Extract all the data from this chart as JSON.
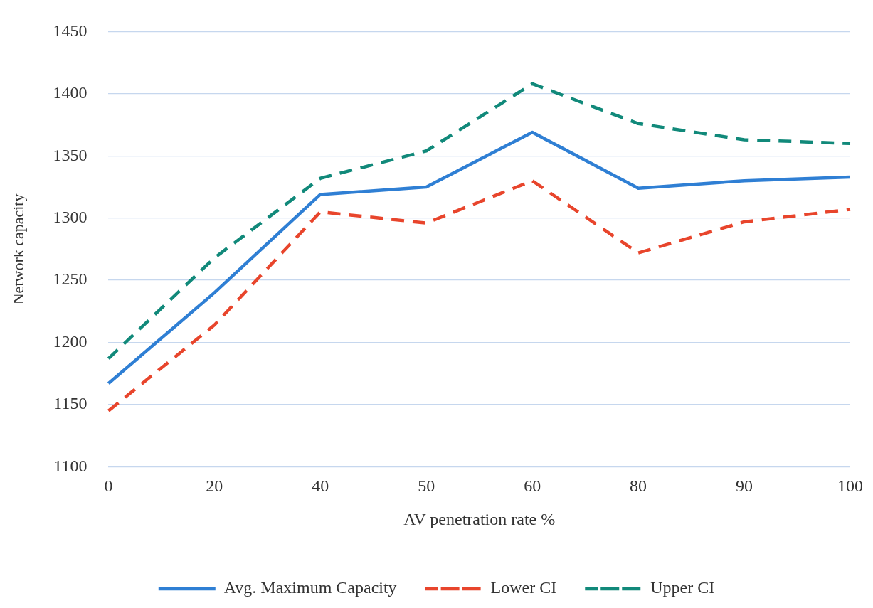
{
  "chart_data": {
    "type": "line",
    "xlabel": "AV penetration rate %",
    "ylabel": "Network capacity",
    "categories": [
      "0",
      "20",
      "40",
      "50",
      "60",
      "80",
      "90",
      "100"
    ],
    "series": [
      {
        "name": "Avg. Maximum Capacity",
        "color": "#2f7fd4",
        "line_style": "solid",
        "values": [
          1167,
          1240,
          1319,
          1325,
          1369,
          1324,
          1330,
          1333
        ]
      },
      {
        "name": "Lower CI",
        "color": "#e8452c",
        "line_style": "dashed",
        "values": [
          1145,
          1214,
          1305,
          1296,
          1330,
          1272,
          1297,
          1307
        ]
      },
      {
        "name": "Upper CI",
        "color": "#11897a",
        "line_style": "dashed",
        "values": [
          1187,
          1268,
          1332,
          1354,
          1408,
          1376,
          1363,
          1360
        ]
      }
    ],
    "ylim": [
      1100,
      1450
    ],
    "yticks": [
      1100,
      1150,
      1200,
      1250,
      1300,
      1350,
      1400,
      1450
    ],
    "grid": "y",
    "legend": "bottom",
    "marker": "none"
  }
}
